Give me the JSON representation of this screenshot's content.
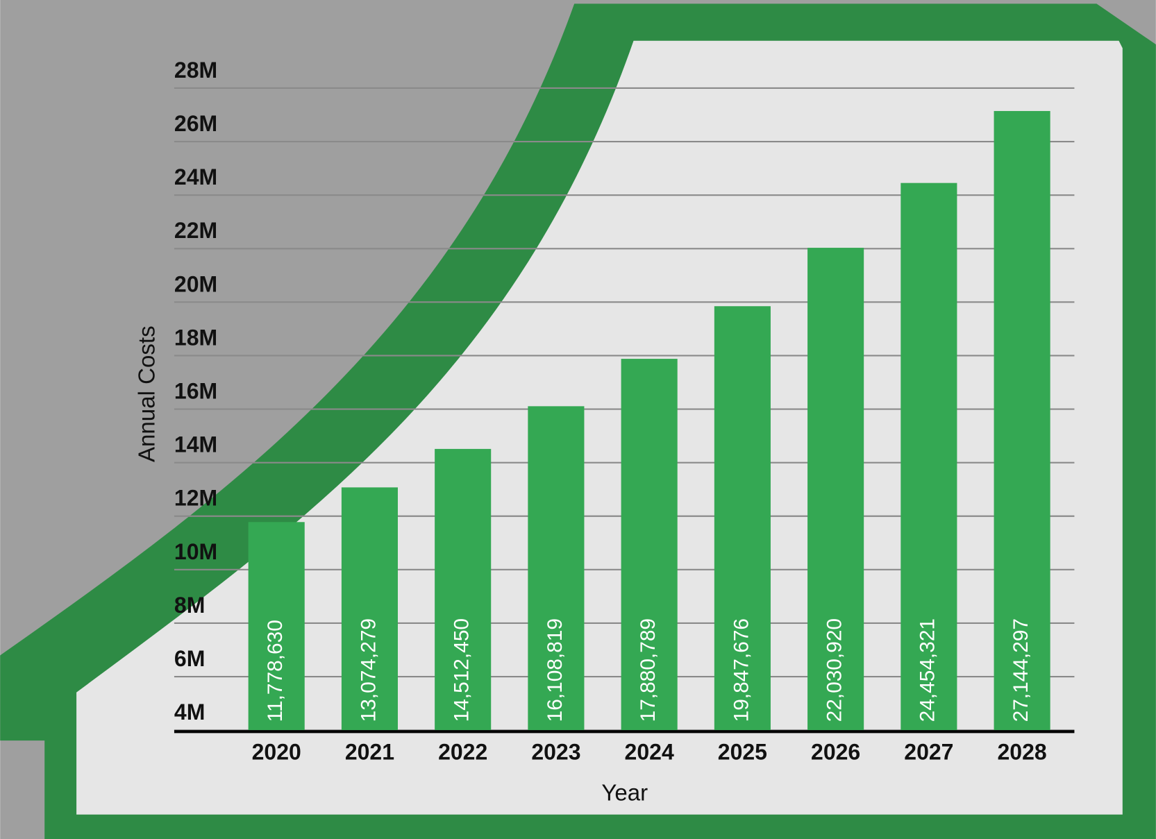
{
  "chart_data": {
    "type": "bar",
    "x_label": "Year",
    "y_label": "Annual Costs",
    "categories": [
      "2020",
      "2021",
      "2022",
      "2023",
      "2024",
      "2025",
      "2026",
      "2027",
      "2028"
    ],
    "values": [
      11778630,
      13074279,
      14512450,
      16108819,
      17880789,
      19847676,
      22030920,
      24454321,
      27144297
    ],
    "value_labels": [
      "11,778,630",
      "13,074,279",
      "14,512,450",
      "16,108,819",
      "17,880,789",
      "19,847,676",
      "22,030,920",
      "24,454,321",
      "27,144,297"
    ],
    "color": "#34a853",
    "ylim": [
      4000000,
      28000000
    ],
    "yticks": [
      {
        "value": 4000000,
        "label": "4M"
      },
      {
        "value": 6000000,
        "label": "6M"
      },
      {
        "value": 8000000,
        "label": "8M"
      },
      {
        "value": 10000000,
        "label": "10M"
      },
      {
        "value": 12000000,
        "label": "12M"
      },
      {
        "value": 14000000,
        "label": "14M"
      },
      {
        "value": 16000000,
        "label": "16M"
      },
      {
        "value": 18000000,
        "label": "18M"
      },
      {
        "value": 20000000,
        "label": "20M"
      },
      {
        "value": 22000000,
        "label": "22M"
      },
      {
        "value": 24000000,
        "label": "24M"
      },
      {
        "value": 26000000,
        "label": "26M"
      },
      {
        "value": 28000000,
        "label": "28M"
      }
    ],
    "grid": true
  }
}
